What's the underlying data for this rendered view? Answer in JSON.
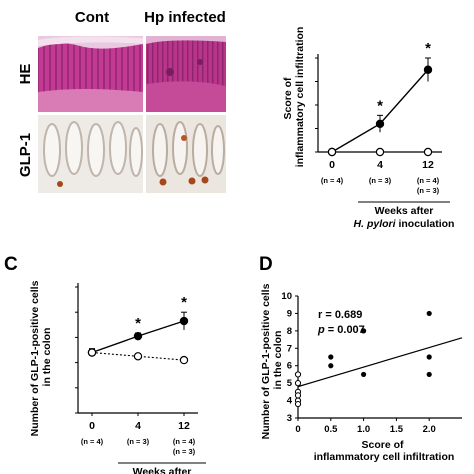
{
  "panel_a": {
    "col_labels": [
      "Cont",
      "Hp infected"
    ],
    "row_labels": [
      "HE",
      "GLP-1"
    ]
  },
  "chart_data": [
    {
      "panel": "B",
      "type": "line",
      "panel_letter": "",
      "ylabel": "Score of inflammatory cell infiltration",
      "x": [
        0,
        4,
        12
      ],
      "ylim": [
        0,
        2
      ],
      "yticks": [
        "0",
        "0.5",
        "1",
        "1.5",
        "2"
      ],
      "series": [
        {
          "values": [
            0,
            0.6,
            1.75
          ],
          "errors": [
            0,
            0.18,
            0.25
          ],
          "marker": "filled",
          "line": "solid"
        },
        {
          "values": [
            0,
            0,
            0
          ],
          "marker": "open",
          "line": "dotted"
        }
      ],
      "significance": [
        "",
        "*",
        "*"
      ],
      "n_labels": [
        [
          "(n = 4)"
        ],
        [
          "(n = 3)"
        ],
        [
          "(n = 4)",
          "(n = 3)"
        ]
      ],
      "xlabel_lines": [
        "Weeks after"
      ],
      "xlabel_italic": "H. pylori",
      "xlabel_suffix": " inoculation"
    },
    {
      "panel": "C",
      "type": "line",
      "panel_letter": "C",
      "ylabel": "Number of GLP-1-positive cells in the colon",
      "x": [
        0,
        4,
        12
      ],
      "ylim": [
        0,
        10
      ],
      "yticks": [
        "0",
        "2",
        "4",
        "6",
        "8",
        "10"
      ],
      "series": [
        {
          "values": [
            4.8,
            6.1,
            7.3
          ],
          "errors": [
            0.3,
            0.25,
            0.7
          ],
          "marker": "filled",
          "line": "solid"
        },
        {
          "values": [
            4.8,
            4.5,
            4.2
          ],
          "errors": [
            0.3,
            0.2,
            0.2
          ],
          "marker": "open",
          "line": "dotted"
        }
      ],
      "significance": [
        "",
        "*",
        "*"
      ],
      "n_labels": [
        [
          "(n = 4)"
        ],
        [
          "(n = 3)"
        ],
        [
          "(n = 4)",
          "(n = 3)"
        ]
      ],
      "xlabel_lines": [
        "Weeks after"
      ]
    },
    {
      "panel": "D",
      "type": "scatter",
      "panel_letter": "D",
      "xlabel": "Score of inflammatory cell infiltration",
      "ylabel": "Number of GLP-1-positive cells in the colon",
      "xlim": [
        0,
        2.5
      ],
      "ylim": [
        3,
        10
      ],
      "xticks": [
        "0",
        "0.5",
        "1.0",
        "1.5",
        "2.0"
      ],
      "yticks": [
        "3",
        "4",
        "5",
        "6",
        "7",
        "8",
        "9",
        "10"
      ],
      "filled_points": [
        [
          0.5,
          6.5
        ],
        [
          0.5,
          6.0
        ],
        [
          1.0,
          8.0
        ],
        [
          1.0,
          5.5
        ],
        [
          2.0,
          9.0
        ],
        [
          2.0,
          6.5
        ],
        [
          2.0,
          5.5
        ]
      ],
      "open_points": [
        [
          0,
          5.5
        ],
        [
          0,
          5.0
        ],
        [
          0,
          4.5
        ],
        [
          0,
          4.3
        ],
        [
          0,
          4.0
        ],
        [
          0,
          3.8
        ]
      ],
      "fit_line": [
        [
          0,
          4.8
        ],
        [
          2.5,
          7.6
        ]
      ],
      "stats_r": "r = 0.689",
      "stats_p_symbol": "p",
      "stats_p_value": " = 0.007"
    }
  ]
}
